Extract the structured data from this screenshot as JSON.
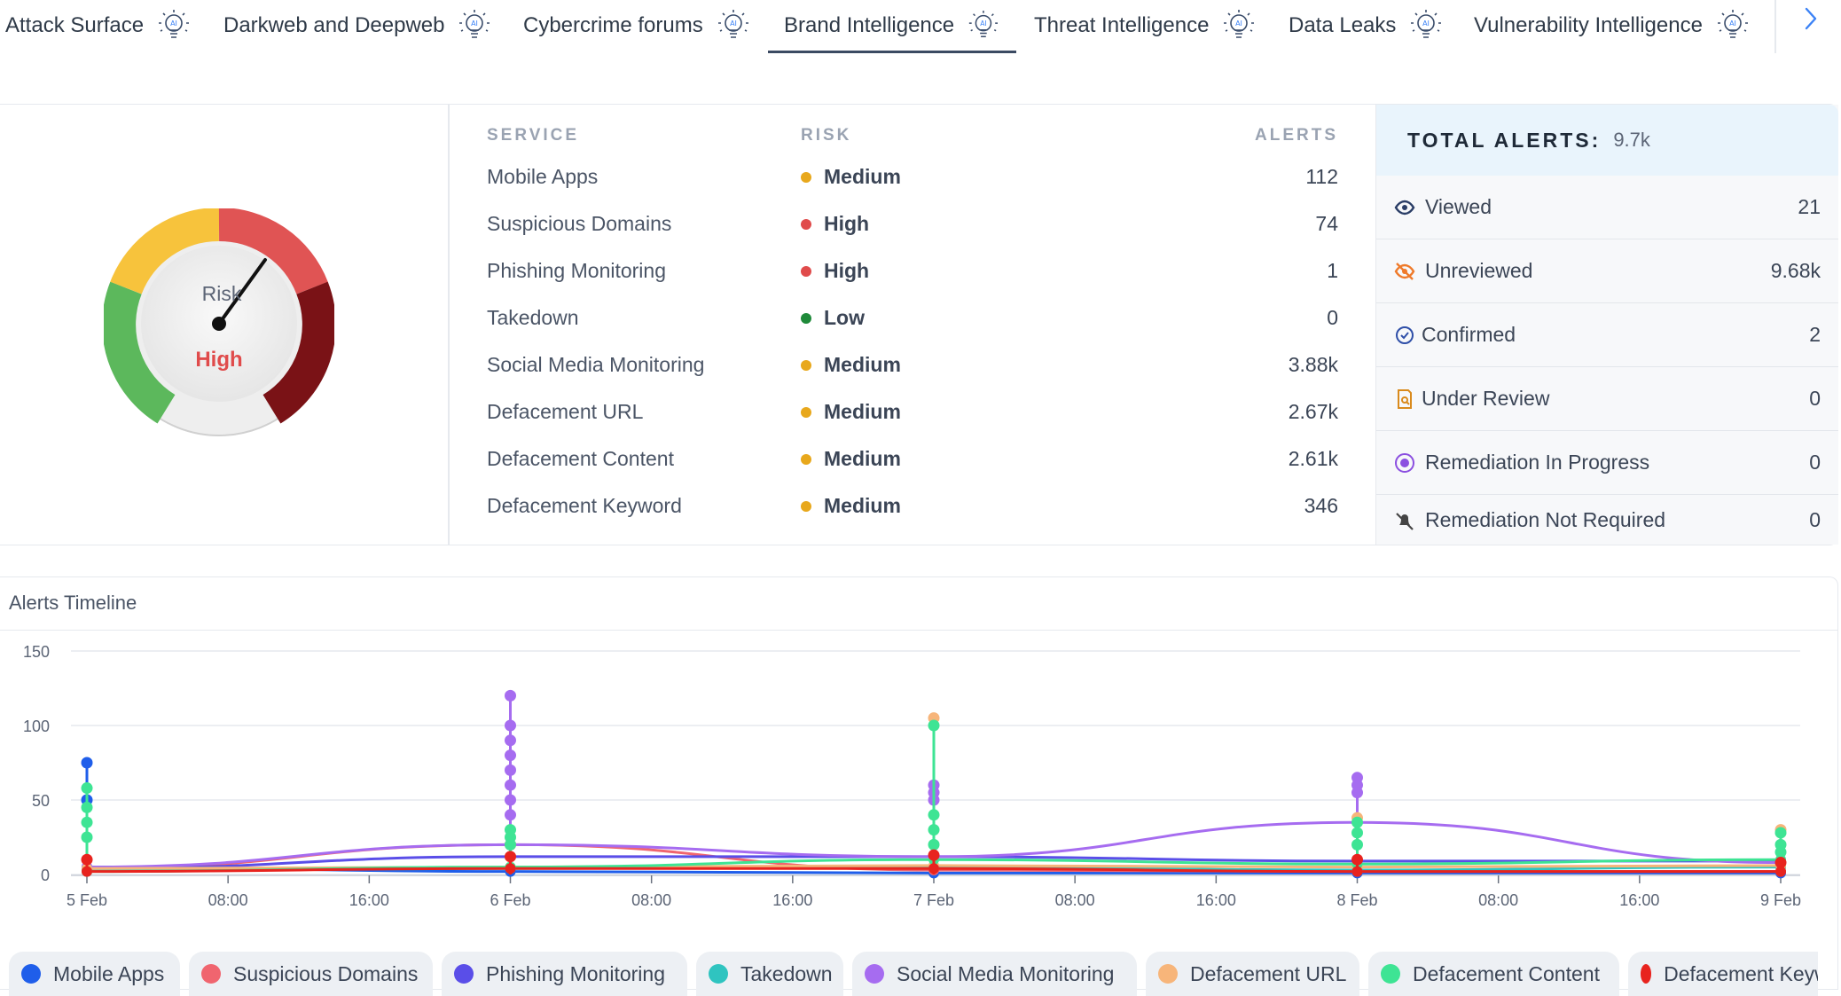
{
  "tabs": [
    {
      "label": "Attack Surface",
      "icon": "ai-bulb-icon"
    },
    {
      "label": "Darkweb and Deepweb",
      "icon": "ai-bulb-icon"
    },
    {
      "label": "Cybercrime forums",
      "icon": "ai-bulb-icon"
    },
    {
      "label": "Brand Intelligence",
      "icon": "ai-bulb-icon",
      "active": true
    },
    {
      "label": "Threat Intelligence",
      "icon": "ai-bulb-icon"
    },
    {
      "label": "Data Leaks",
      "icon": "ai-bulb-icon"
    },
    {
      "label": "Vulnerability Intelligence",
      "icon": "ai-bulb-icon"
    }
  ],
  "gauge": {
    "label": "Risk",
    "level": "High",
    "level_color": "#e04b4b"
  },
  "services": {
    "headers": {
      "service": "SERVICE",
      "risk": "RISK",
      "alerts": "ALERTS"
    },
    "rows": [
      {
        "service": "Mobile Apps",
        "risk": "Medium",
        "risk_color": "#e8a81c",
        "alerts": "112"
      },
      {
        "service": "Suspicious Domains",
        "risk": "High",
        "risk_color": "#e04b4b",
        "alerts": "74"
      },
      {
        "service": "Phishing Monitoring",
        "risk": "High",
        "risk_color": "#e04b4b",
        "alerts": "1"
      },
      {
        "service": "Takedown",
        "risk": "Low",
        "risk_color": "#1f8a3a",
        "alerts": "0"
      },
      {
        "service": "Social Media Monitoring",
        "risk": "Medium",
        "risk_color": "#e8a81c",
        "alerts": "3.88k"
      },
      {
        "service": "Defacement URL",
        "risk": "Medium",
        "risk_color": "#e8a81c",
        "alerts": "2.67k"
      },
      {
        "service": "Defacement Content",
        "risk": "Medium",
        "risk_color": "#e8a81c",
        "alerts": "2.61k"
      },
      {
        "service": "Defacement Keyword",
        "risk": "Medium",
        "risk_color": "#e8a81c",
        "alerts": "346"
      }
    ]
  },
  "totals": {
    "title": "TOTAL ALERTS:",
    "value": "9.7k",
    "rows": [
      {
        "label": "Viewed",
        "value": "21",
        "icon": "eye-icon"
      },
      {
        "label": "Unreviewed",
        "value": "9.68k",
        "icon": "eye-off-icon"
      },
      {
        "label": "Confirmed",
        "value": "2",
        "icon": "check-circle-icon"
      },
      {
        "label": "Under Review",
        "value": "0",
        "icon": "document-search-icon"
      },
      {
        "label": "Remediation In Progress",
        "value": "0",
        "icon": "progress-circle-icon"
      },
      {
        "label": "Remediation Not Required",
        "value": "0",
        "icon": "muted-bell-icon"
      }
    ]
  },
  "timeline": {
    "title": "Alerts Timeline"
  },
  "chart_data": {
    "type": "line",
    "y_ticks": [
      0,
      50,
      100,
      150
    ],
    "ylim": [
      0,
      150
    ],
    "x_ticks": [
      "5 Feb",
      "08:00",
      "16:00",
      "6 Feb",
      "08:00",
      "16:00",
      "7 Feb",
      "08:00",
      "16:00",
      "8 Feb",
      "08:00",
      "16:00",
      "9 Feb"
    ],
    "grid": true,
    "legend_position": "bottom",
    "series": [
      {
        "name": "Mobile Apps",
        "color": "#1f5eea",
        "day_values": [
          5,
          2,
          1,
          1,
          1
        ],
        "spikes": [
          [
            0,
            75
          ],
          [
            0,
            50
          ]
        ]
      },
      {
        "name": "Suspicious Domains",
        "color": "#f0656f",
        "day_values": [
          4,
          20,
          3,
          2,
          2
        ],
        "spikes": [
          [
            1,
            20
          ]
        ]
      },
      {
        "name": "Phishing Monitoring",
        "color": "#5a4ee8",
        "day_values": [
          4,
          12,
          12,
          9,
          9
        ],
        "spikes": []
      },
      {
        "name": "Takedown",
        "color": "#2fc4c0",
        "day_values": [
          3,
          4,
          5,
          3,
          5
        ],
        "spikes": []
      },
      {
        "name": "Social Media Monitoring",
        "color": "#a66cf0",
        "day_values": [
          5,
          20,
          12,
          35,
          8
        ],
        "spikes": [
          [
            1,
            120
          ],
          [
            1,
            100
          ],
          [
            1,
            90
          ],
          [
            1,
            80
          ],
          [
            1,
            70
          ],
          [
            1,
            60
          ],
          [
            1,
            50
          ],
          [
            1,
            40
          ],
          [
            2,
            60
          ],
          [
            2,
            55
          ],
          [
            2,
            50
          ],
          [
            3,
            65
          ],
          [
            3,
            60
          ],
          [
            3,
            55
          ]
        ]
      },
      {
        "name": "Defacement URL",
        "color": "#f7b57a",
        "day_values": [
          4,
          5,
          6,
          5,
          6
        ],
        "spikes": [
          [
            2,
            105
          ],
          [
            3,
            38
          ],
          [
            4,
            30
          ]
        ]
      },
      {
        "name": "Defacement Content",
        "color": "#3ee494",
        "day_values": [
          2,
          5,
          10,
          7,
          10
        ],
        "spikes": [
          [
            0,
            58
          ],
          [
            0,
            45
          ],
          [
            0,
            35
          ],
          [
            0,
            25
          ],
          [
            1,
            30
          ],
          [
            1,
            25
          ],
          [
            1,
            20
          ],
          [
            2,
            100
          ],
          [
            2,
            40
          ],
          [
            2,
            30
          ],
          [
            2,
            20
          ],
          [
            3,
            35
          ],
          [
            3,
            28
          ],
          [
            3,
            20
          ],
          [
            4,
            28
          ],
          [
            4,
            20
          ],
          [
            4,
            15
          ]
        ]
      },
      {
        "name": "Defacement Keyword",
        "color": "#e8231e",
        "day_values": [
          2,
          4,
          4,
          2,
          2
        ],
        "spikes": [
          [
            0,
            10
          ],
          [
            1,
            12
          ],
          [
            2,
            13
          ],
          [
            3,
            10
          ],
          [
            4,
            8
          ]
        ]
      }
    ]
  }
}
